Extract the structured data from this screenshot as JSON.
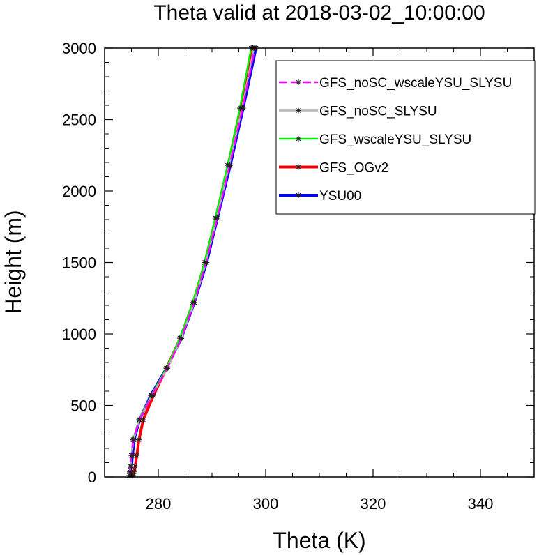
{
  "chart_data": {
    "type": "line",
    "title": "Theta valid at 2018-03-02_10:00:00",
    "xlabel": "Theta (K)",
    "ylabel": "Height (m)",
    "xlim": [
      270,
      350
    ],
    "ylim": [
      0,
      3000
    ],
    "x_ticks": [
      280,
      300,
      320,
      340
    ],
    "y_ticks": [
      0,
      500,
      1000,
      1500,
      2000,
      2500,
      3000
    ],
    "x_tick_labels": [
      "280",
      "300",
      "320",
      "340"
    ],
    "y_tick_labels": [
      "0",
      "500",
      "1000",
      "1500",
      "2000",
      "2500",
      "3000"
    ],
    "grid": false,
    "legend_position": "top-right",
    "heights": [
      10,
      35,
      75,
      150,
      260,
      400,
      570,
      760,
      970,
      1220,
      1500,
      1810,
      2180,
      2580,
      3000
    ],
    "series": [
      {
        "name": "YSU00",
        "color": "#0000ff",
        "dash": "solid",
        "theta": [
          274.9,
          274.9,
          275.0,
          275.2,
          275.5,
          276.5,
          278.6,
          281.5,
          284.3,
          286.7,
          289.0,
          291.0,
          293.4,
          295.8,
          298.2
        ]
      },
      {
        "name": "GFS_OGv2",
        "color": "#ff0000",
        "dash": "solid",
        "theta": [
          275.3,
          275.5,
          275.7,
          276.0,
          276.4,
          277.2,
          279.1,
          281.5,
          284.1,
          286.5,
          288.7,
          290.7,
          293.1,
          295.4,
          297.6
        ]
      },
      {
        "name": "GFS_wscaleYSU_SLYSU",
        "color": "#00ee00",
        "dash": "solid",
        "theta": [
          274.6,
          274.7,
          274.8,
          275.0,
          275.3,
          276.4,
          278.7,
          281.5,
          284.0,
          286.4,
          288.6,
          290.6,
          292.9,
          295.2,
          297.3
        ]
      },
      {
        "name": "GFS_noSC_SLYSU",
        "color": "#b4b4b4",
        "dash": "solid",
        "theta": [
          274.6,
          274.7,
          274.8,
          275.0,
          275.4,
          276.5,
          278.8,
          281.7,
          284.3,
          286.7,
          288.9,
          290.9,
          293.2,
          295.6,
          297.8
        ]
      },
      {
        "name": "GFS_noSC_wscaleYSU_SLYSU",
        "color": "#ff00ff",
        "dash": "dashed",
        "theta": [
          274.6,
          274.7,
          274.8,
          275.0,
          275.3,
          276.5,
          278.8,
          281.7,
          284.3,
          286.7,
          288.9,
          291.0,
          293.3,
          295.7,
          298.0
        ]
      }
    ]
  }
}
